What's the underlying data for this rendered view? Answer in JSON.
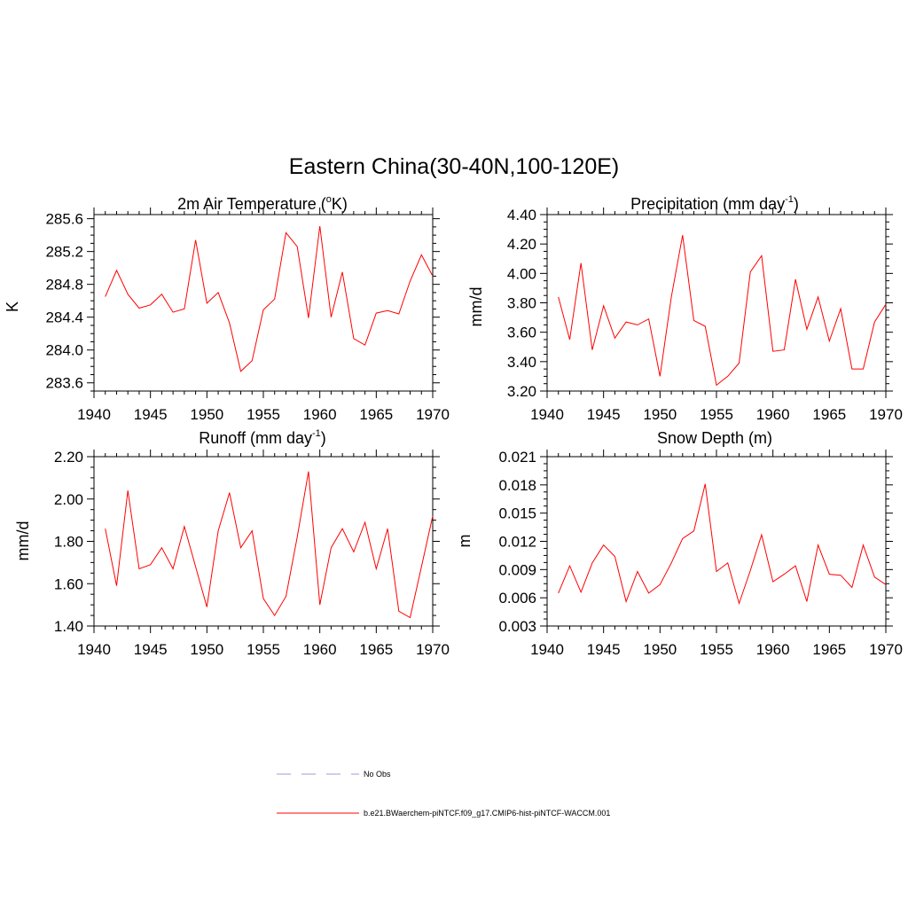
{
  "figure": {
    "title": "Eastern China(30-40N,100-120E)"
  },
  "legend": {
    "items": [
      {
        "label": "No Obs",
        "color": "#9b9bdc",
        "style": "dashed"
      },
      {
        "label": "b.e21.BWaerchem-piNTCF.f09_g17.CMIP6-hist-piNTCF-WACCM.001",
        "color": "#ff0000",
        "style": "solid"
      }
    ]
  },
  "chart_data": [
    {
      "type": "line",
      "title": "2m Air Temperature (",
      "title_sup": "o",
      "title_after": "K)",
      "ylabel": "K",
      "xlabel": "",
      "xlim": [
        1940,
        1970
      ],
      "ylim": [
        283.5,
        285.65
      ],
      "xticks": [
        1940,
        1945,
        1950,
        1955,
        1960,
        1965,
        1970
      ],
      "yticks": [
        283.6,
        284.0,
        284.4,
        284.8,
        285.2,
        285.6
      ],
      "ytick_labels": [
        "283.6",
        "284.0",
        "284.4",
        "284.8",
        "285.2",
        "285.6"
      ],
      "series": [
        {
          "color": "#ff0000",
          "x": [
            1941,
            1942,
            1943,
            1944,
            1945,
            1946,
            1947,
            1948,
            1949,
            1950,
            1951,
            1952,
            1953,
            1954,
            1955,
            1956,
            1957,
            1958,
            1959,
            1960,
            1961,
            1962,
            1963,
            1964,
            1965,
            1966,
            1967,
            1968,
            1969,
            1970
          ],
          "values": [
            284.65,
            284.97,
            284.68,
            284.51,
            284.55,
            284.68,
            284.46,
            284.5,
            285.34,
            284.57,
            284.7,
            284.33,
            283.74,
            283.87,
            284.49,
            284.62,
            285.43,
            285.26,
            284.39,
            285.51,
            284.4,
            284.95,
            284.14,
            284.06,
            284.45,
            284.48,
            284.44,
            284.84,
            285.16,
            284.9
          ]
        }
      ]
    },
    {
      "type": "line",
      "title": "Precipitation (mm day",
      "title_sup": "-1",
      "title_after": ")",
      "ylabel": "mm/d",
      "xlabel": "",
      "xlim": [
        1940,
        1970
      ],
      "ylim": [
        3.2,
        4.4
      ],
      "xticks": [
        1940,
        1945,
        1950,
        1955,
        1960,
        1965,
        1970
      ],
      "yticks": [
        3.2,
        3.4,
        3.6,
        3.8,
        4.0,
        4.2,
        4.4
      ],
      "ytick_labels": [
        "3.20",
        "3.40",
        "3.60",
        "3.80",
        "4.00",
        "4.20",
        "4.40"
      ],
      "series": [
        {
          "color": "#ff0000",
          "x": [
            1941,
            1942,
            1943,
            1944,
            1945,
            1946,
            1947,
            1948,
            1949,
            1950,
            1951,
            1952,
            1953,
            1954,
            1955,
            1956,
            1957,
            1958,
            1959,
            1960,
            1961,
            1962,
            1963,
            1964,
            1965,
            1966,
            1967,
            1968,
            1969,
            1970
          ],
          "values": [
            3.84,
            3.55,
            4.07,
            3.48,
            3.78,
            3.56,
            3.67,
            3.65,
            3.69,
            3.3,
            3.84,
            4.26,
            3.68,
            3.64,
            3.24,
            3.3,
            3.39,
            4.01,
            4.12,
            3.47,
            3.48,
            3.96,
            3.62,
            3.84,
            3.54,
            3.76,
            3.35,
            3.35,
            3.67,
            3.79
          ]
        }
      ]
    },
    {
      "type": "line",
      "title": "Runoff (mm day",
      "title_sup": "-1",
      "title_after": ")",
      "ylabel": "mm/d",
      "xlabel": "",
      "xlim": [
        1940,
        1970
      ],
      "ylim": [
        1.4,
        2.2
      ],
      "xticks": [
        1940,
        1945,
        1950,
        1955,
        1960,
        1965,
        1970
      ],
      "yticks": [
        1.4,
        1.6,
        1.8,
        2.0,
        2.2
      ],
      "ytick_labels": [
        "1.40",
        "1.60",
        "1.80",
        "2.00",
        "2.20"
      ],
      "series": [
        {
          "color": "#ff0000",
          "x": [
            1941,
            1942,
            1943,
            1944,
            1945,
            1946,
            1947,
            1948,
            1949,
            1950,
            1951,
            1952,
            1953,
            1954,
            1955,
            1956,
            1957,
            1958,
            1959,
            1960,
            1961,
            1962,
            1963,
            1964,
            1965,
            1966,
            1967,
            1968,
            1969,
            1970
          ],
          "values": [
            1.86,
            1.59,
            2.04,
            1.67,
            1.69,
            1.77,
            1.67,
            1.87,
            1.68,
            1.49,
            1.85,
            2.03,
            1.77,
            1.85,
            1.53,
            1.45,
            1.54,
            1.82,
            2.13,
            1.5,
            1.77,
            1.86,
            1.75,
            1.89,
            1.67,
            1.86,
            1.47,
            1.44,
            1.68,
            1.92
          ]
        }
      ]
    },
    {
      "type": "line",
      "title": "Snow Depth (m)",
      "title_sup": "",
      "title_after": "",
      "ylabel": "m",
      "xlabel": "",
      "xlim": [
        1940,
        1970
      ],
      "ylim": [
        0.003,
        0.021
      ],
      "xticks": [
        1940,
        1945,
        1950,
        1955,
        1960,
        1965,
        1970
      ],
      "yticks": [
        0.003,
        0.006,
        0.009,
        0.012,
        0.015,
        0.018,
        0.021
      ],
      "ytick_labels": [
        "0.003",
        "0.006",
        "0.009",
        "0.012",
        "0.015",
        "0.018",
        "0.021"
      ],
      "series": [
        {
          "color": "#ff0000",
          "x": [
            1941,
            1942,
            1943,
            1944,
            1945,
            1946,
            1947,
            1948,
            1949,
            1950,
            1951,
            1952,
            1953,
            1954,
            1955,
            1956,
            1957,
            1958,
            1959,
            1960,
            1961,
            1962,
            1963,
            1964,
            1965,
            1966,
            1967,
            1968,
            1969,
            1970
          ],
          "values": [
            0.0065,
            0.0094,
            0.0066,
            0.0097,
            0.0116,
            0.0104,
            0.0056,
            0.0088,
            0.0065,
            0.0074,
            0.0097,
            0.0123,
            0.0131,
            0.0181,
            0.0088,
            0.0097,
            0.0054,
            0.0089,
            0.0127,
            0.0077,
            0.0085,
            0.0094,
            0.0056,
            0.0116,
            0.0085,
            0.0084,
            0.0071,
            0.0116,
            0.0082,
            0.0074
          ]
        }
      ]
    }
  ]
}
